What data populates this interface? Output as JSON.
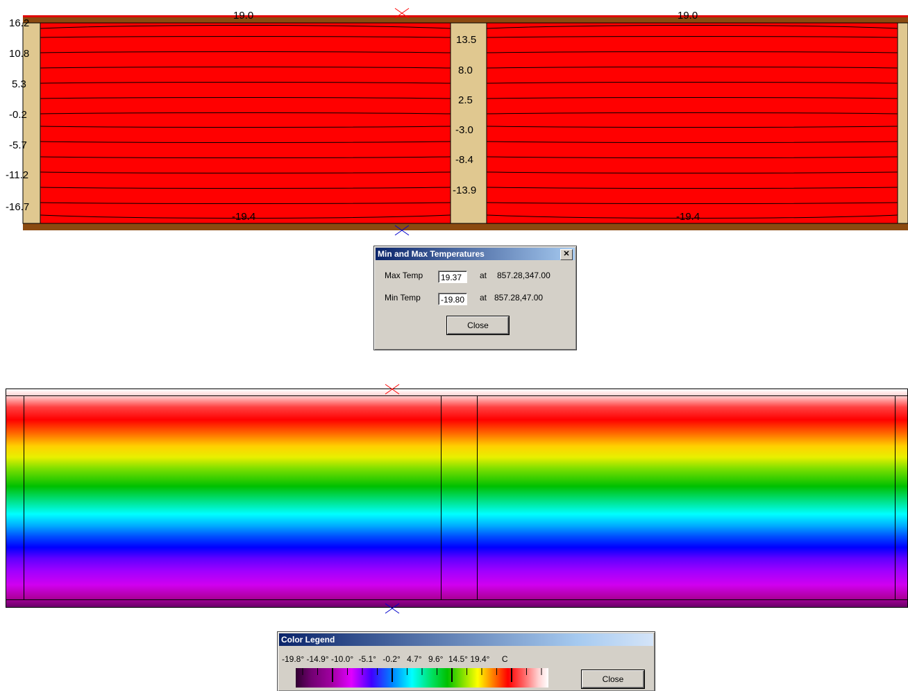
{
  "isotherm_view": {
    "left_labels": [
      "16.2",
      "10.8",
      "5.3",
      "-0.2",
      "-5.7",
      "-11.2",
      "-16.7"
    ],
    "center_labels": [
      "13.5",
      "8.0",
      "2.5",
      "-3.0",
      "-8.4",
      "-13.9"
    ],
    "top_labels": [
      "19.0",
      "19.0"
    ],
    "bottom_labels": [
      "-19.4",
      "-19.4"
    ],
    "colors": {
      "fill": "#ff0000",
      "wood": "#e0c890",
      "border": "#8b4a10",
      "max_marker": "#ff0000",
      "min_marker": "#0000cc"
    }
  },
  "minmax_dialog": {
    "title": "Min and Max Temperatures",
    "close_glyph": "✕",
    "max_label": "Max Temp",
    "max_value": "19.37",
    "max_at_label": "at",
    "max_location": "857.28,347.00",
    "min_label": "Min Temp",
    "min_value": "-19.80",
    "min_at_label": "at",
    "min_location": "857.28,47.00",
    "close_button": "Close"
  },
  "legend_dialog": {
    "title": "Color Legend",
    "scale": [
      "-19.8°",
      "-14.9°",
      "-10.0°",
      "-5.1°",
      "-0.2°",
      "4.7°",
      "9.6°",
      "14.5°",
      "19.4°"
    ],
    "unit": "C",
    "close_button": "Close"
  }
}
